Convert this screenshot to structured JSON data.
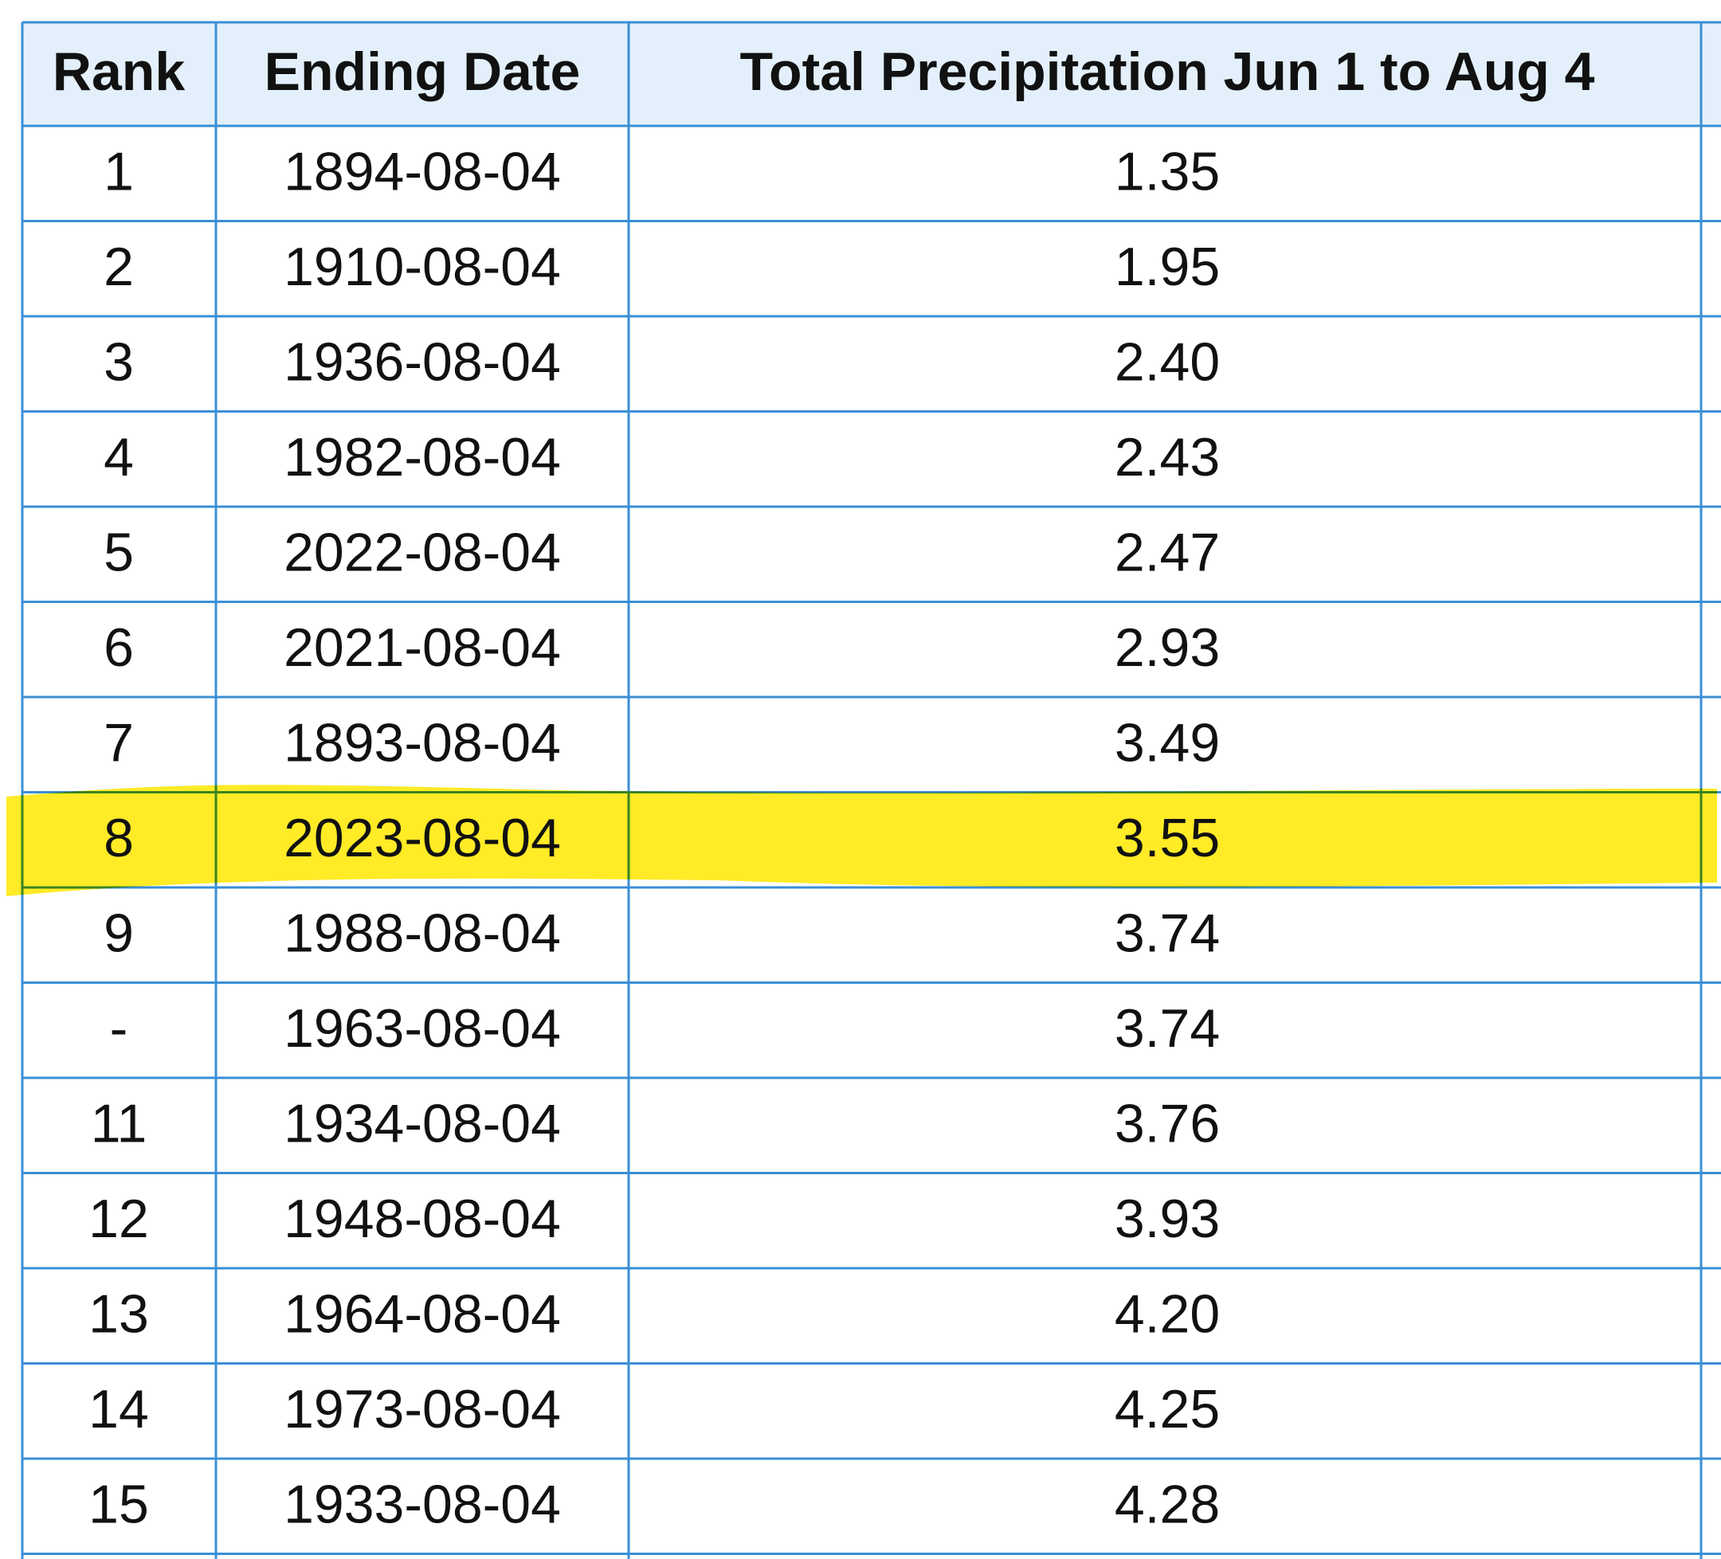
{
  "table": {
    "header": [
      "Rank",
      "Ending Date",
      "Total Precipitation Jun 1 to Aug 4"
    ],
    "rows": [
      [
        "1",
        "1894-08-04",
        "1.35"
      ],
      [
        "2",
        "1910-08-04",
        "1.95"
      ],
      [
        "3",
        "1936-08-04",
        "2.40"
      ],
      [
        "4",
        "1982-08-04",
        "2.43"
      ],
      [
        "5",
        "2022-08-04",
        "2.47"
      ],
      [
        "6",
        "2021-08-04",
        "2.93"
      ],
      [
        "7",
        "1893-08-04",
        "3.49"
      ],
      [
        "8",
        "2023-08-04",
        "3.55"
      ],
      [
        "9",
        "1988-08-04",
        "3.74"
      ],
      [
        "-",
        "1963-08-04",
        "3.74"
      ],
      [
        "11",
        "1934-08-04",
        "3.76"
      ],
      [
        "12",
        "1948-08-04",
        "3.93"
      ],
      [
        "13",
        "1964-08-04",
        "4.20"
      ],
      [
        "14",
        "1973-08-04",
        "4.25"
      ],
      [
        "15",
        "1933-08-04",
        "4.28"
      ]
    ]
  }
}
